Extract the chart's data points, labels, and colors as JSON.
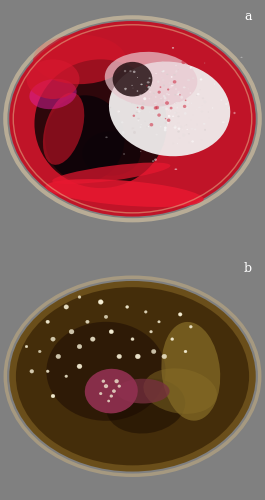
{
  "figsize": [
    2.65,
    5.0
  ],
  "dpi": 100,
  "bg_color_a": "#1a1a1a",
  "bg_color_b": "#3a3d4a",
  "panel_a": {
    "label": "a",
    "dish_fill": "#c01428",
    "dish_edge": "#c8b090",
    "dark_shadow": "#2a0810",
    "colony_fill": "#f0ecea",
    "streak_color": "#e01830"
  },
  "panel_b": {
    "label": "b",
    "dish_fill": "#7a5a20",
    "dish_edge": "#a09060",
    "inner_fill": "#4a3010",
    "colony_fill": "#a04050",
    "streak_fill": "#8a7030",
    "dot_color": "#f0e8c0"
  }
}
